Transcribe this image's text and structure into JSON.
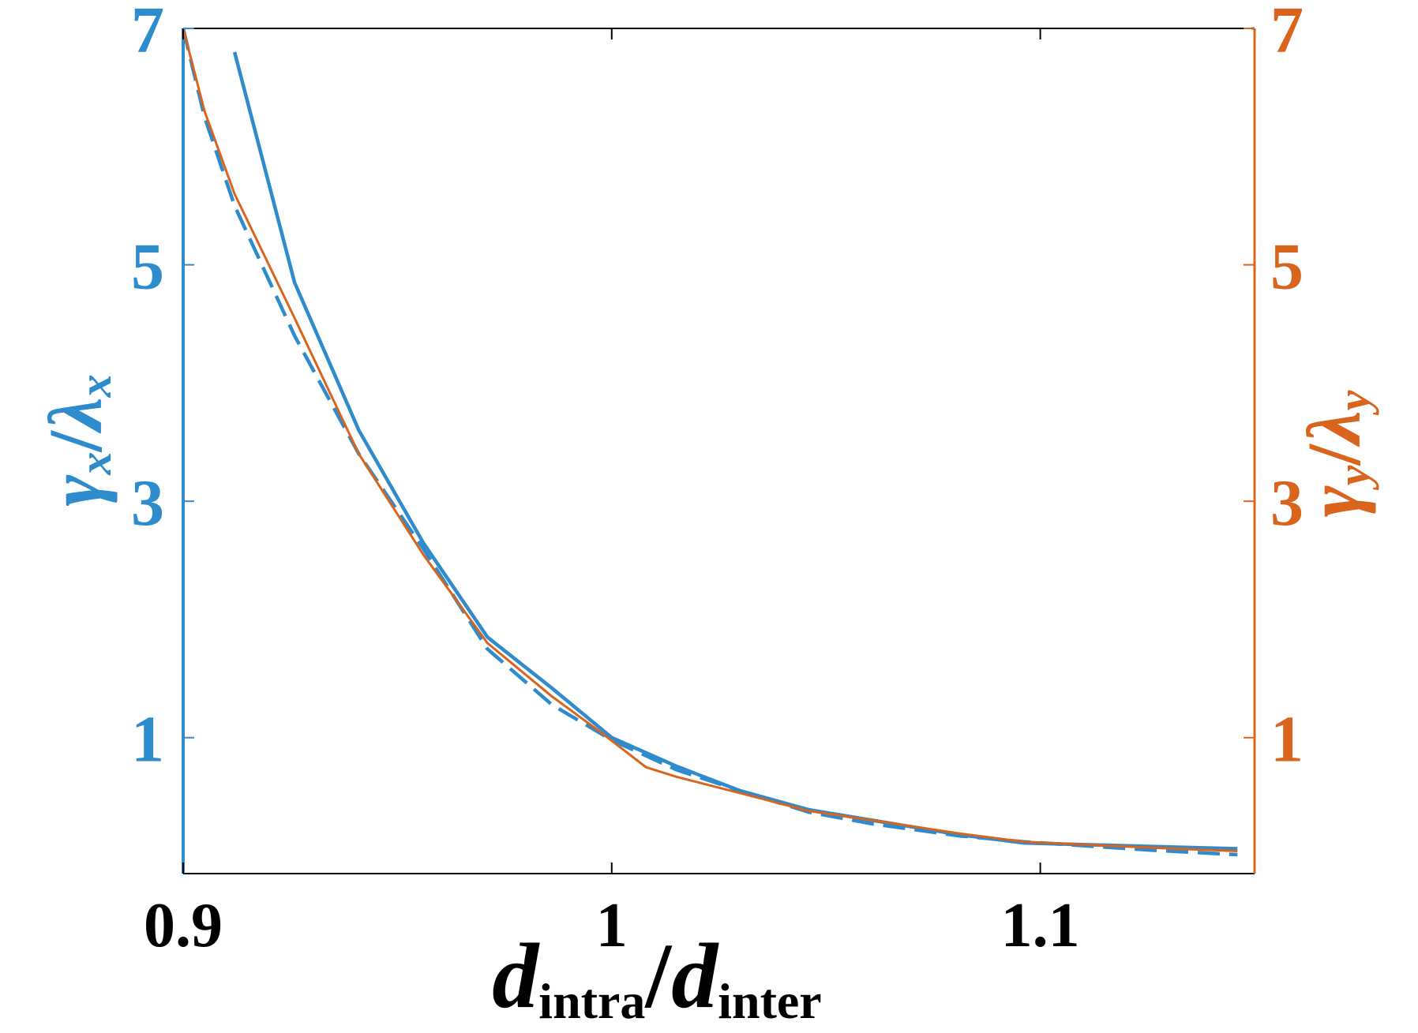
{
  "colors": {
    "left": "#2e8bcc",
    "right": "#d9641e",
    "frame": "#000000",
    "corner_tick": "#3a8a3a"
  },
  "chart_data": {
    "type": "line",
    "xlim": [
      0.9,
      1.15
    ],
    "ylim": [
      -0.15,
      7
    ],
    "grid": false,
    "legend": "none",
    "x_ticks": [
      0.9,
      1,
      1.1
    ],
    "x_tick_labels": [
      "0.9",
      "1",
      "1.1"
    ],
    "y_ticks": [
      1,
      3,
      5,
      7
    ],
    "y_tick_labels_left": [
      "1",
      "3",
      "5",
      "7"
    ],
    "y_tick_labels_right": [
      "1",
      "3",
      "5",
      "7"
    ],
    "xlabel": {
      "main": "d",
      "sub1": "intra",
      "sep": "/",
      "main2": "d",
      "sub2": "inter"
    },
    "ylabel_left": {
      "a": "γ",
      "a_sub": "x",
      "b": "λ",
      "b_sub": "x"
    },
    "ylabel_right": {
      "a": "γ",
      "a_sub": "y",
      "b": "λ",
      "b_sub": "y"
    },
    "series": [
      {
        "axis": "left",
        "style": "solid",
        "width": 4.5,
        "x": [
          0.912,
          0.926,
          0.941,
          0.956,
          0.971,
          0.986,
          1.0,
          1.015,
          1.03,
          1.046,
          1.061,
          1.081,
          1.096,
          1.125,
          1.146
        ],
        "y": [
          6.8,
          4.85,
          3.6,
          2.65,
          1.85,
          1.42,
          1.0,
          0.76,
          0.55,
          0.39,
          0.3,
          0.18,
          0.11,
          0.08,
          0.06
        ]
      },
      {
        "axis": "left",
        "style": "dashed",
        "width": 4.5,
        "x": [
          0.9,
          0.905,
          0.912,
          0.926,
          0.941,
          0.956,
          0.971,
          0.986,
          1.0,
          1.015,
          1.03,
          1.046,
          1.061,
          1.081,
          1.096,
          1.125,
          1.146
        ],
        "y": [
          7.0,
          6.25,
          5.5,
          4.4,
          3.4,
          2.6,
          1.75,
          1.28,
          0.98,
          0.73,
          0.55,
          0.37,
          0.27,
          0.17,
          0.12,
          0.05,
          0.01
        ]
      },
      {
        "axis": "right",
        "style": "solid",
        "width": 3,
        "x": [
          0.9,
          0.905,
          0.912,
          0.926,
          0.941,
          0.956,
          0.971,
          0.986,
          0.998,
          1.008,
          1.015,
          1.03,
          1.046,
          1.061,
          1.081,
          1.096,
          1.125,
          1.146
        ],
        "y": [
          7.0,
          6.3,
          5.6,
          4.55,
          3.4,
          2.55,
          1.8,
          1.35,
          1.03,
          0.75,
          0.67,
          0.53,
          0.38,
          0.3,
          0.19,
          0.12,
          0.07,
          0.04
        ]
      }
    ]
  }
}
